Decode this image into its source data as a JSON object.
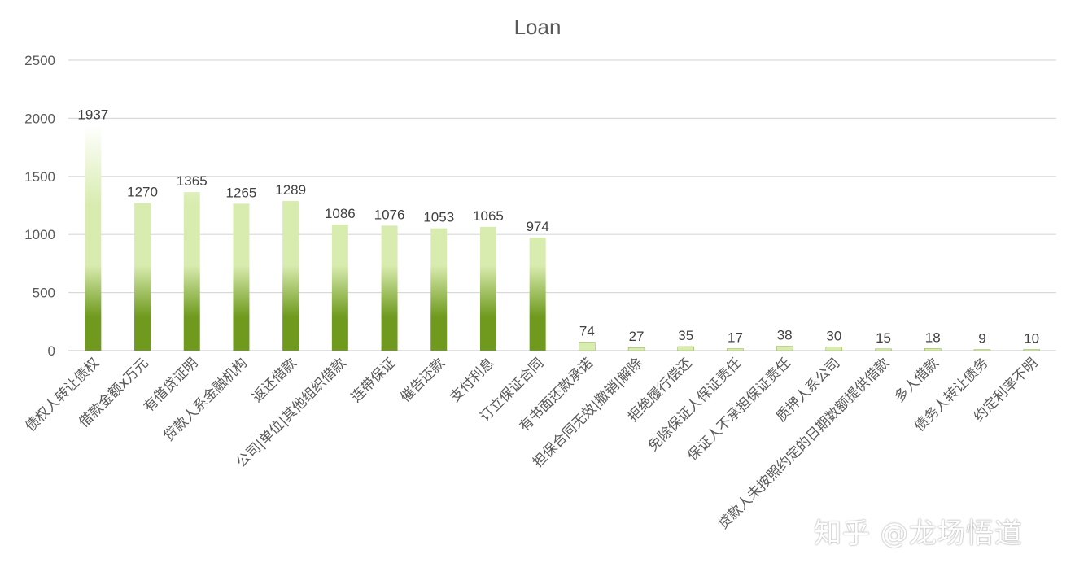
{
  "chart_data": {
    "type": "bar",
    "title": "Loan",
    "xlabel": "",
    "ylabel": "",
    "ylim": [
      0,
      2500
    ],
    "yticks": [
      0,
      500,
      1000,
      1500,
      2000,
      2500
    ],
    "grid": true,
    "legend": "none",
    "categories": [
      "债权人转让债权",
      "借款金额x万元",
      "有借贷证明",
      "贷款人系金融机构",
      "返还借款",
      "公司|单位|其他组织借款",
      "连带保证",
      "催告还款",
      "支付利息",
      "订立保证合同",
      "有书面还款承诺",
      "担保合同无效|撤销|解除",
      "拒绝履行偿还",
      "免除保证人保证责任",
      "保证人不承担保证责任",
      "质押人系公司",
      "贷款人未按照约定的日期数额提供借款",
      "多人借款",
      "债务人转让债务",
      "约定利率不明"
    ],
    "values": [
      1937,
      1270,
      1365,
      1265,
      1289,
      1086,
      1076,
      1053,
      1065,
      974,
      74,
      27,
      35,
      17,
      38,
      30,
      15,
      18,
      9,
      10
    ],
    "colors": {
      "bar_dark": "#6f9a1e",
      "bar_light": "#d9ecb0",
      "bar_top": "#ffffff"
    }
  },
  "watermark": "知乎 @龙场悟道"
}
